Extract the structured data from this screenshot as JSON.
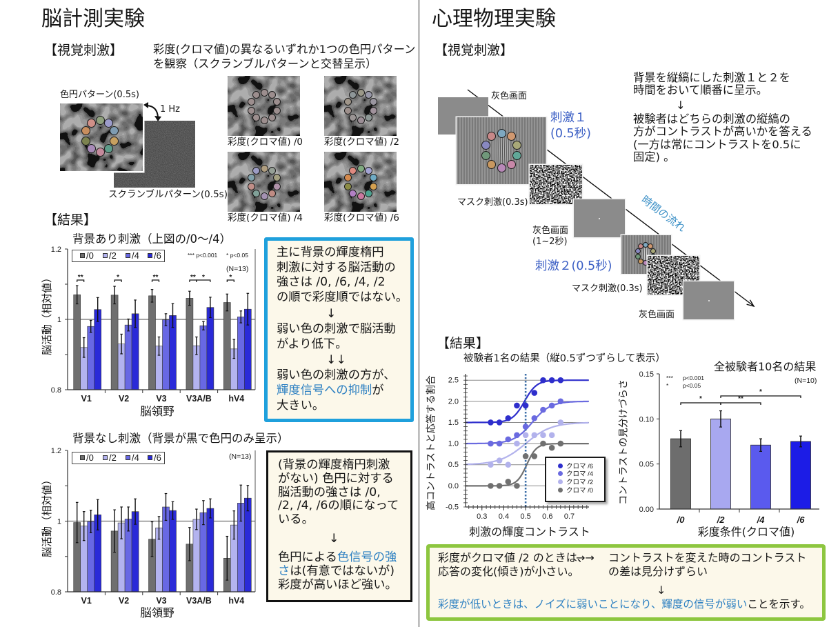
{
  "colors": {
    "note_box_1_border": "#1fa0dc",
    "note_box_2_border": "#111111",
    "conclusion_box_border": "#8dc63f",
    "box_background": "#fcf8ea",
    "highlight_text": "#2d80c2",
    "stimulus_label": "#3a5ec4",
    "time_flow_label": "#3a8fc6",
    "gray_screen": "#8b8b8b"
  },
  "brain_experiment": {
    "title": "脳計測実験",
    "stimulus_heading": "【視覚刺激】",
    "stimulus_description": [
      "彩度(クロマ値)の異なるいずれか1つの色円パターン",
      "を観察（スクランブルパターンと交替呈示）"
    ],
    "color_pattern_label": "色円パターン(0.5s)",
    "alternation_rate": "1 Hz",
    "scramble_label": "スクランブルパターン(0.5s)",
    "color_pattern_ring": [
      "#8fa07e",
      "#9c9cca",
      "#7f9cb2",
      "#c8a060",
      "#5e9c8a",
      "#c48a9c",
      "#a88ab8",
      "#7c8250",
      "#c88e5e",
      "#d09088"
    ],
    "chroma_examples": [
      {
        "label": "彩度(クロマ値) /0",
        "ring": [
          "#9c8e8e",
          "#9c8e8e",
          "#9c8e8e",
          "#9c8e8e",
          "#9c8e8e",
          "#9c8e8e",
          "#9c8e8e",
          "#9c8e8e",
          "#9c8e8e",
          "#9c8e8e"
        ]
      },
      {
        "label": "彩度(クロマ値) /2",
        "ring": [
          "#9a9888",
          "#9898a8",
          "#9a96a0",
          "#a0929c",
          "#8e9896",
          "#9c8e96",
          "#9a9494",
          "#9e908c",
          "#a0968a",
          "#8e9698"
        ]
      },
      {
        "label": "彩度(クロマ値) /4",
        "ring": [
          "#b09e80",
          "#96a096",
          "#a4a080",
          "#b092aa",
          "#c08c84",
          "#a492b2",
          "#80a098",
          "#c08e88",
          "#80a0aa",
          "#9c9cc4"
        ]
      },
      {
        "label": "彩度(クロマ値) /6",
        "ring": [
          "#80aa80",
          "#a4a4d4",
          "#6eaac4",
          "#d4a050",
          "#4ea290",
          "#cc78a0",
          "#b280c4",
          "#8c8c46",
          "#d48a4e",
          "#e08a80"
        ]
      }
    ],
    "results_heading": "【結果】",
    "note_with_background": {
      "lines": [
        {
          "text": "主に背景の輝度楕円"
        },
        {
          "text": "刺激に対する脳活動の"
        },
        {
          "text": "強さは /0, /6, /4, /2"
        },
        {
          "text": "の順で彩度順ではない。"
        },
        {
          "text": "↓",
          "arrow": true
        },
        {
          "text": "弱い色の刺激で脳活動"
        },
        {
          "text": "がより低下。"
        },
        {
          "text": "↓↓",
          "arrow": true
        },
        {
          "text": "弱い色の刺激の方が、"
        },
        {
          "segments": [
            {
              "text": "輝度信号への抑制",
              "highlight": true
            },
            {
              "text": "が"
            }
          ]
        },
        {
          "text": "大きい。"
        }
      ]
    },
    "note_without_background": {
      "lines": [
        {
          "text": "(背景の輝度楕円刺激"
        },
        {
          "text": "がない) 色円に対する"
        },
        {
          "text": "脳活動の強さは /0,"
        },
        {
          "text": "/2, /4, /6の順になって"
        },
        {
          "text": "いる。"
        },
        {
          "text": "↓",
          "arrow": true
        },
        {
          "segments": [
            {
              "text": "色円による"
            },
            {
              "text": "色信号の強",
              "highlight": true
            }
          ]
        },
        {
          "segments": [
            {
              "text": "さ",
              "highlight": true
            },
            {
              "text": "は(有意ではないが)"
            }
          ]
        },
        {
          "text": "彩度が高いほど強い。"
        }
      ]
    }
  },
  "psychophysics_experiment": {
    "title": "心理物理実験",
    "stimulus_heading": "【視覚刺激】",
    "sequence": {
      "gray_screen_first": "灰色画面",
      "stimulus_1": [
        "刺激１",
        "(0.5秒)"
      ],
      "mask_first": "マスク刺激(0.3s)",
      "gray_screen_interval": [
        "灰色画面",
        "(1~2秒)"
      ],
      "stimulus_2": "刺激２(0.5秒)",
      "mask_second": "マスク刺激(0.3s)",
      "gray_screen_last": "灰色画面",
      "time_flow": "時間の流れ",
      "stimulus_ring": [
        "#7ea8c0",
        "#d09870",
        "#a8a878",
        "#60a898",
        "#c888a8",
        "#b888b8",
        "#c89860",
        "#70987a",
        "#8888c0",
        "#c88888"
      ]
    },
    "explanation": {
      "lines": [
        {
          "text": "背景を縦縞にした刺激１と２を"
        },
        {
          "text": "時間をおいて順番に呈示。"
        },
        {
          "text": "↓",
          "arrow": true
        },
        {
          "text": "被験者はどちらの刺激の縦縞の"
        },
        {
          "text": "方がコントラストが高いかを答える"
        },
        {
          "text": "(一方は常にコントラストを0.5に"
        },
        {
          "text": "固定) 。"
        }
      ]
    },
    "results_heading": "【結果】",
    "conclusion": {
      "left_lines": [
        "彩度がクロマ値 /2 のときは、",
        "応答の変化(傾き)が小さい。"
      ],
      "arrow": "→→",
      "right_lines": [
        "コントラストを変えた時のコントラスト",
        "の差は見分けずらい"
      ],
      "down_arrow": "↓",
      "summary": [
        {
          "text": "彩度が低いときは、ノイズに弱いことになり、輝度の信号が弱い",
          "highlight": true
        },
        {
          "text": "ことを示す。"
        }
      ]
    }
  },
  "chart_data": [
    {
      "id": "brain_activity_with_background",
      "type": "bar",
      "title": "背景あり刺激（上図の/0～/4）",
      "xlabel": "脳領野",
      "ylabel": "脳活動（相対値）",
      "categories": [
        "V1",
        "V2",
        "V3",
        "V3A/B",
        "hV4"
      ],
      "series": [
        {
          "name": "/0",
          "color": "#6f6f6f",
          "values": [
            1.07,
            1.069,
            1.067,
            1.06,
            1.048
          ],
          "errors": [
            0.026,
            0.025,
            0.018,
            0.02,
            0.024
          ]
        },
        {
          "name": "/2",
          "color": "#b3b3ef",
          "values": [
            0.92,
            0.93,
            0.924,
            0.925,
            0.916
          ],
          "errors": [
            0.028,
            0.028,
            0.026,
            0.025,
            0.027
          ]
        },
        {
          "name": "/4",
          "color": "#6868e4",
          "values": [
            0.98,
            0.984,
            0.999,
            0.982,
            1.007
          ],
          "errors": [
            0.017,
            0.017,
            0.017,
            0.012,
            0.017
          ]
        },
        {
          "name": "/6",
          "color": "#2a2ad8",
          "values": [
            1.028,
            1.016,
            1.011,
            1.034,
            1.029
          ],
          "errors": [
            0.034,
            0.039,
            0.034,
            0.029,
            0.045
          ]
        }
      ],
      "ylim": [
        0.8,
        1.2
      ],
      "yticks": [
        {
          "value": 1.2,
          "label": "1.2"
        },
        {
          "value": 1.0,
          "label": "1"
        },
        {
          "value": 0.8,
          "label": "0.8"
        }
      ],
      "yminor": [
        0.9,
        1.1
      ],
      "reference_line": 1.0,
      "grid": false,
      "legend": {
        "position": "top-left"
      },
      "annotations": {
        "sig_levels": [
          {
            "symbol": "***",
            "text": "p<0.001"
          },
          {
            "symbol": "*",
            "text": "p<0.05"
          }
        ],
        "n": "(N=13)"
      },
      "significance": [
        {
          "category": "V1",
          "from": "/0",
          "to": "/2",
          "label": "**"
        },
        {
          "category": "V2",
          "from": "/0",
          "to": "/2",
          "label": "*"
        },
        {
          "category": "V3",
          "from": "/0",
          "to": "/2",
          "label": "**"
        },
        {
          "category": "V3A/B",
          "from": "/0",
          "to": "/2",
          "label": "**"
        },
        {
          "category": "V3A/B",
          "from": "/2",
          "to": "/6",
          "label": "*"
        },
        {
          "category": "hV4",
          "from": "/0",
          "to": "/2",
          "label": "*"
        }
      ]
    },
    {
      "id": "brain_activity_without_background",
      "type": "bar",
      "title": "背景なし刺激（背景が黒で色円のみ呈示）",
      "xlabel": "脳領野",
      "ylabel": "脳活動（相対値）",
      "categories": [
        "V1",
        "V2",
        "V3",
        "V3A/B",
        "hV4"
      ],
      "series": [
        {
          "name": "/0",
          "color": "#6f6f6f",
          "values": [
            0.996,
            0.972,
            0.949,
            0.935,
            0.895
          ],
          "errors": [
            0.057,
            0.06,
            0.049,
            0.047,
            0.062
          ]
        },
        {
          "name": "/2",
          "color": "#b3b3ef",
          "values": [
            0.986,
            0.995,
            0.981,
            1.005,
            0.989
          ],
          "errors": [
            0.041,
            0.045,
            0.032,
            0.029,
            0.04
          ]
        },
        {
          "name": "/4",
          "color": "#6868e4",
          "values": [
            0.999,
            1.006,
            1.04,
            1.024,
            1.051
          ],
          "errors": [
            0.032,
            0.034,
            0.038,
            0.034,
            0.051
          ]
        },
        {
          "name": "/6",
          "color": "#2a2ad8",
          "values": [
            1.018,
            1.027,
            1.03,
            1.036,
            1.065
          ],
          "errors": [
            0.043,
            0.036,
            0.025,
            0.027,
            0.036
          ]
        }
      ],
      "ylim": [
        0.8,
        1.2
      ],
      "yticks": [
        {
          "value": 1.2,
          "label": "1.2"
        },
        {
          "value": 1.0,
          "label": "1"
        },
        {
          "value": 0.8,
          "label": "0.8"
        }
      ],
      "yminor": [
        0.9,
        1.1
      ],
      "reference_line": 1.0,
      "grid": false,
      "legend": {
        "position": "top-left"
      },
      "annotations": {
        "n": "(N=13)"
      },
      "significance": []
    },
    {
      "id": "single_subject_psychometric",
      "type": "scatter",
      "title": "被験者1名の結果（縦0.5ずつずらして表示）",
      "xlabel": "刺激の輝度コントラスト",
      "ylabel": "高コントラストと応答する割合",
      "x": [
        0.34,
        0.38,
        0.42,
        0.46,
        0.5,
        0.54,
        0.58,
        0.62,
        0.66
      ],
      "series": [
        {
          "name": "クロマ /6",
          "color": "#2e2ecc",
          "offset": 1.5,
          "values": [
            0,
            0,
            0.1,
            0.4,
            0.4,
            0.7,
            1.0,
            1.0,
            1.0
          ],
          "fit": {
            "midpoint": 0.495,
            "slope": 36
          }
        },
        {
          "name": "クロマ /4",
          "color": "#6a6ae0",
          "offset": 1.0,
          "values": [
            0,
            0,
            0.1,
            0.2,
            0.4,
            0.6,
            0.8,
            0.9,
            1.0
          ],
          "fit": {
            "midpoint": 0.53,
            "slope": 24
          }
        },
        {
          "name": "クロマ /2",
          "color": "#b2b2ec",
          "offset": 0.5,
          "values": [
            0,
            0.1,
            0,
            0.5,
            0.7,
            0.7,
            0.7,
            0.7,
            1.0
          ],
          "fit": {
            "midpoint": 0.5,
            "slope": 17
          }
        },
        {
          "name": "クロマ /0",
          "color": "#707070",
          "offset": 0.0,
          "values": [
            0,
            0,
            0.1,
            0,
            0.7,
            0.7,
            1.0,
            0.9,
            1.0
          ],
          "fit": {
            "midpoint": 0.505,
            "slope": 45
          }
        }
      ],
      "xlim": [
        0.225,
        0.79
      ],
      "ylim": [
        -0.5,
        2.65
      ],
      "xticks": [
        {
          "value": 0.3,
          "label": "0.3"
        },
        {
          "value": 0.4,
          "label": "0.4"
        },
        {
          "value": 0.5,
          "label": "0.5"
        },
        {
          "value": 0.6,
          "label": "0.6"
        },
        {
          "value": 0.7,
          "label": "0.7"
        }
      ],
      "yticks": [
        {
          "value": 2.5,
          "label": "2.5"
        },
        {
          "value": 2.0,
          "label": "2.0"
        },
        {
          "value": 1.5,
          "label": "1.5"
        },
        {
          "value": 1.0,
          "label": "1.0"
        },
        {
          "value": 0.5,
          "label": "0.5"
        },
        {
          "value": 0.0,
          "label": "0.0"
        },
        {
          "value": -0.5,
          "label": "-0.5"
        }
      ],
      "gridlines": [
        0,
        0.5,
        1.0,
        1.5,
        2.0,
        2.5
      ],
      "reference_vline": 0.5,
      "legend": {
        "position": "inside-lower-right"
      }
    },
    {
      "id": "all_subjects_discrimination",
      "type": "bar",
      "title": "全被験者10名の結果",
      "xlabel": "彩度条件(クロマ値)",
      "ylabel": "コントラストの見分けづらさ",
      "categories": [
        "/0",
        "/2",
        "/4",
        "/6"
      ],
      "values": [
        0.078,
        0.1,
        0.071,
        0.075
      ],
      "errors": [
        0.009,
        0.009,
        0.007,
        0.006
      ],
      "colors": [
        "#6d6d6d",
        "#a8a8f0",
        "#5a5aee",
        "#1c1ce6"
      ],
      "ylim": [
        0,
        0.15
      ],
      "yticks": [
        {
          "value": 0,
          "label": "0.00"
        },
        {
          "value": 0.05,
          "label": "0.05"
        },
        {
          "value": 0.1,
          "label": "0.10"
        },
        {
          "value": 0.15,
          "label": "0.15"
        }
      ],
      "grid": false,
      "annotations": {
        "sig_levels": [
          {
            "symbol": "***",
            "text": "p<0.001"
          },
          {
            "symbol": "*",
            "text": "p<0.05"
          }
        ],
        "n": "(N=10)"
      },
      "significance": [
        {
          "from": "/0",
          "to": "/2",
          "label": "*",
          "level": 1
        },
        {
          "from": "/2",
          "to": "/4",
          "label": "**",
          "level": 1
        },
        {
          "from": "/2",
          "to": "/6",
          "label": "*",
          "level": 2
        }
      ]
    }
  ]
}
